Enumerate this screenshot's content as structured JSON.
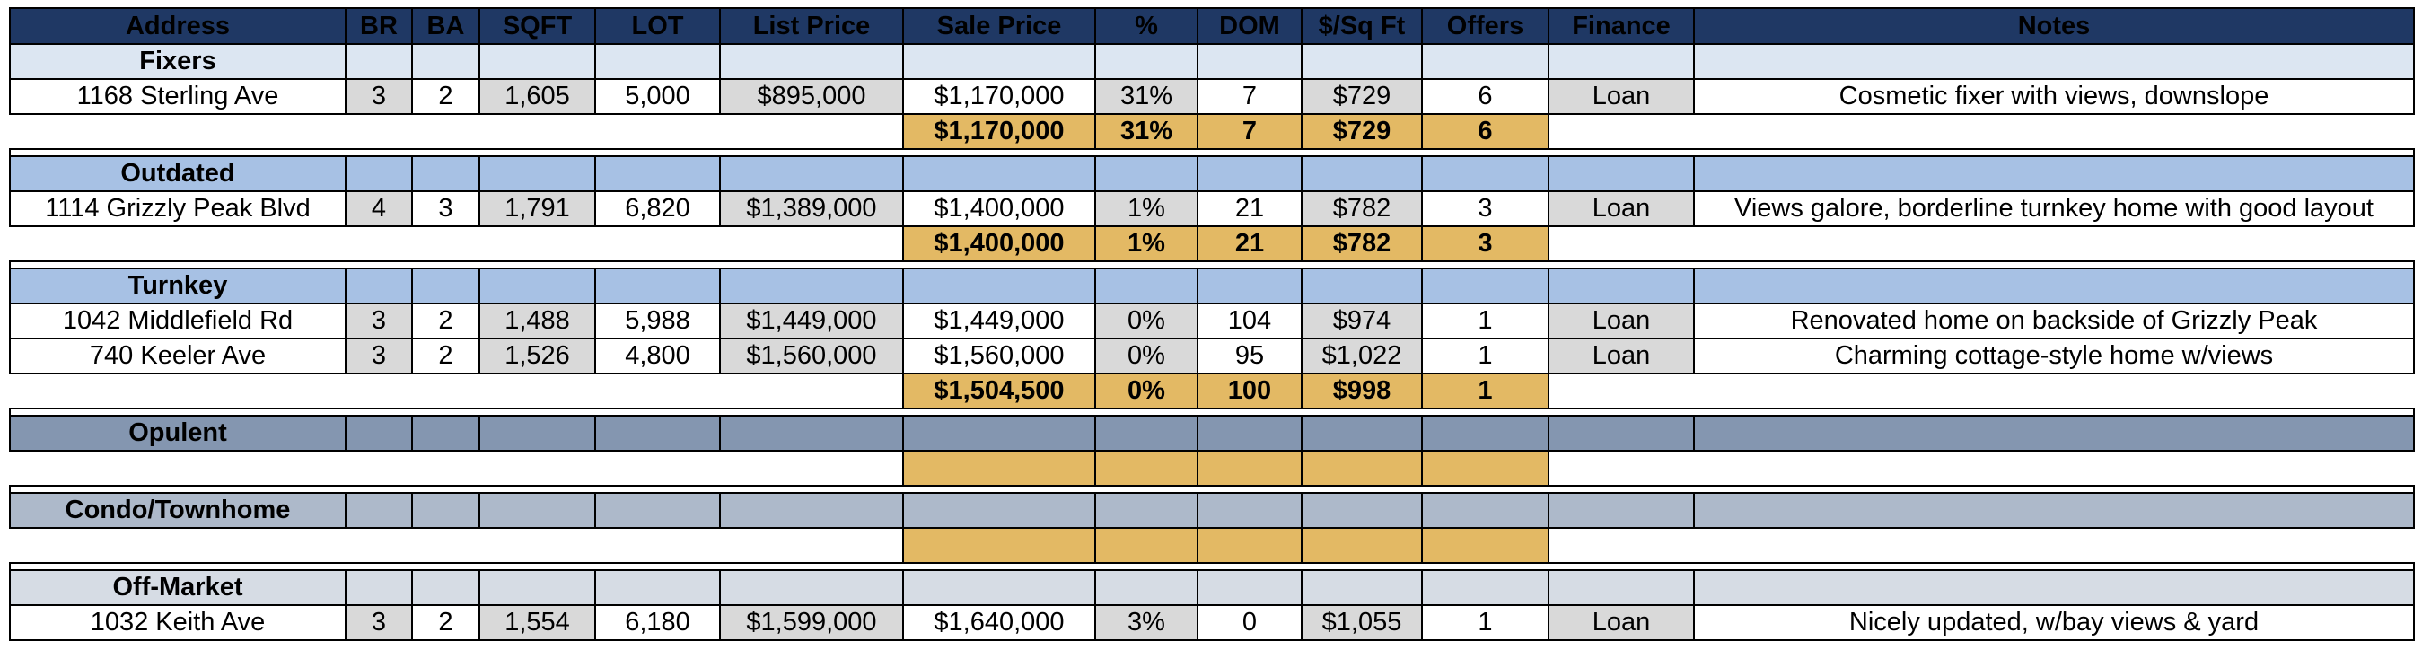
{
  "headers": [
    "Address",
    "BR",
    "BA",
    "SQFT",
    "LOT",
    "List Price",
    "Sale Price",
    "%",
    "DOM",
    "$/Sq Ft",
    "Offers",
    "Finance",
    "Notes"
  ],
  "sections": [
    {
      "name": "Fixers",
      "style": "light",
      "rows": [
        {
          "address": "1168 Sterling Ave",
          "br": "3",
          "ba": "2",
          "sqft": "1,605",
          "lot": "5,000",
          "list": "$895,000",
          "sale": "$1,170,000",
          "pct": "31%",
          "dom": "7",
          "ppsf": "$729",
          "offers": "6",
          "finance": "Loan",
          "notes": "Cosmetic fixer with views, downslope"
        }
      ],
      "summary": {
        "sale": "$1,170,000",
        "pct": "31%",
        "dom": "7",
        "ppsf": "$729",
        "offers": "6"
      }
    },
    {
      "name": "Outdated",
      "style": "mid",
      "rows": [
        {
          "address": "1114 Grizzly Peak Blvd",
          "br": "4",
          "ba": "3",
          "sqft": "1,791",
          "lot": "6,820",
          "list": "$1,389,000",
          "sale": "$1,400,000",
          "pct": "1%",
          "dom": "21",
          "ppsf": "$782",
          "offers": "3",
          "finance": "Loan",
          "notes": "Views galore, borderline turnkey home with good layout"
        }
      ],
      "summary": {
        "sale": "$1,400,000",
        "pct": "1%",
        "dom": "21",
        "ppsf": "$782",
        "offers": "3"
      }
    },
    {
      "name": "Turnkey",
      "style": "mid",
      "rows": [
        {
          "address": "1042 Middlefield Rd",
          "br": "3",
          "ba": "2",
          "sqft": "1,488",
          "lot": "5,988",
          "list": "$1,449,000",
          "sale": "$1,449,000",
          "pct": "0%",
          "dom": "104",
          "ppsf": "$974",
          "offers": "1",
          "finance": "Loan",
          "notes": "Renovated home on backside of Grizzly Peak"
        },
        {
          "address": "740 Keeler Ave",
          "br": "3",
          "ba": "2",
          "sqft": "1,526",
          "lot": "4,800",
          "list": "$1,560,000",
          "sale": "$1,560,000",
          "pct": "0%",
          "dom": "95",
          "ppsf": "$1,022",
          "offers": "1",
          "finance": "Loan",
          "notes": "Charming cottage-style home w/views"
        }
      ],
      "summary": {
        "sale": "$1,504,500",
        "pct": "0%",
        "dom": "100",
        "ppsf": "$998",
        "offers": "1"
      }
    },
    {
      "name": "Opulent",
      "style": "dark",
      "rows": [],
      "summary": {
        "sale": "",
        "pct": "",
        "dom": "",
        "ppsf": "",
        "offers": ""
      }
    },
    {
      "name": "Condo/Townhome",
      "style": "steel",
      "rows": [],
      "summary": {
        "sale": "",
        "pct": "",
        "dom": "",
        "ppsf": "",
        "offers": ""
      }
    },
    {
      "name": "Off-Market",
      "style": "pale",
      "rows": [
        {
          "address": "1032 Keith Ave",
          "br": "3",
          "ba": "2",
          "sqft": "1,554",
          "lot": "6,180",
          "list": "$1,599,000",
          "sale": "$1,640,000",
          "pct": "3%",
          "dom": "0",
          "ppsf": "$1,055",
          "offers": "1",
          "finance": "Loan",
          "notes": "Nicely updated, w/bay views & yard"
        }
      ],
      "summary": null
    }
  ]
}
